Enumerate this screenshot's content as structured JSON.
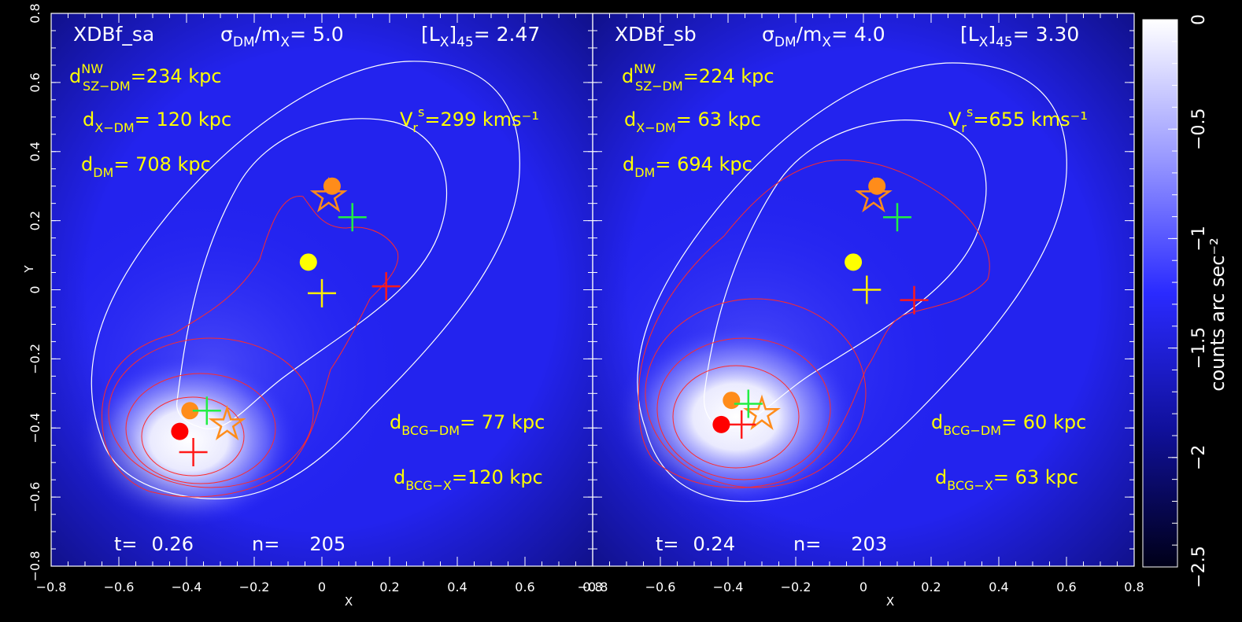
{
  "chart_data": {
    "type": "heatmap",
    "x_axis": {
      "label": "X",
      "range": [
        -0.8,
        0.8
      ],
      "ticks": [
        "-0.8",
        "-0.6",
        "-0.4",
        "-0.2",
        "0",
        "0.2",
        "0.4",
        "0.6",
        "0.8"
      ]
    },
    "y_axis": {
      "label": "Y",
      "range": [
        -0.8,
        0.8
      ],
      "ticks": [
        "-0.8",
        "-0.6",
        "-0.4",
        "-0.2",
        "0",
        "0.2",
        "0.4",
        "0.6",
        "0.8"
      ]
    },
    "colorbar": {
      "label": "counts arc sec⁻²",
      "range": [
        -2.5,
        0
      ],
      "ticks": [
        "0",
        "-0.5",
        "-1",
        "-1.5",
        "-2",
        "-2.5"
      ],
      "tick_values": [
        0,
        -0.5,
        -1,
        -1.5,
        -2,
        -2.5
      ],
      "colors": {
        "low": "#000033",
        "mid": "#1a1aff",
        "high": "#ffffff"
      }
    },
    "panels": [
      {
        "name": "XDBf_sa",
        "sigma_label": "σDM/mX= 5.0",
        "lx_label": "[LX]45=  2.47",
        "d_sz_dm": "234 kpc",
        "d_x_dm": " 120 kpc",
        "d_dm": " 708 kpc",
        "vr": "299 kms⁻¹",
        "d_bcg_dm": "  77 kpc",
        "d_bcg_x": "120 kpc",
        "t": "0.26",
        "n": "205",
        "markers": {
          "orange_circles": [
            [
              0.03,
              0.3
            ],
            [
              -0.39,
              -0.35
            ]
          ],
          "orange_stars": [
            [
              0.02,
              0.27
            ],
            [
              -0.28,
              -0.39
            ]
          ],
          "green_crosses": [
            [
              0.09,
              0.21
            ],
            [
              -0.34,
              -0.35
            ]
          ],
          "yellow_circle": [
            -0.04,
            0.08
          ],
          "yellow_cross": [
            0.0,
            -0.01
          ],
          "red_crosses": [
            [
              0.19,
              0.01
            ],
            [
              -0.38,
              -0.47
            ]
          ],
          "red_circle": [
            -0.42,
            -0.41
          ]
        }
      },
      {
        "name": "XDBf_sb",
        "sigma_label": "σDM/mX= 4.0",
        "lx_label": "[LX]45=  3.30",
        "d_sz_dm": "224 kpc",
        "d_x_dm": "    63 kpc",
        "d_dm": " 694 kpc",
        "vr": "655 kms⁻¹",
        "d_bcg_dm": " 60 kpc",
        "d_bcg_x": "    63 kpc",
        "t": "0.24",
        "n": "203",
        "markers": {
          "orange_circles": [
            [
              0.04,
              0.3
            ],
            [
              -0.39,
              -0.32
            ]
          ],
          "orange_stars": [
            [
              0.03,
              0.27
            ],
            [
              -0.3,
              -0.36
            ]
          ],
          "green_crosses": [
            [
              0.1,
              0.21
            ],
            [
              -0.34,
              -0.33
            ]
          ],
          "yellow_circle": [
            -0.03,
            0.08
          ],
          "yellow_cross": [
            0.01,
            0.0
          ],
          "red_crosses": [
            [
              0.15,
              -0.03
            ],
            [
              -0.36,
              -0.39
            ]
          ],
          "red_circle": [
            -0.42,
            -0.39
          ]
        }
      }
    ]
  },
  "labels": {
    "dsz_sup": "NW",
    "dsz_sub": "SZ−DM",
    "dx_sub": "X−DM",
    "ddm_sub": "DM",
    "vr_sup": "s",
    "dbcgdm_sub": "BCG−DM",
    "dbcgx_sub": "BCG−X",
    "t_prefix": "t=",
    "n_prefix": "n="
  }
}
